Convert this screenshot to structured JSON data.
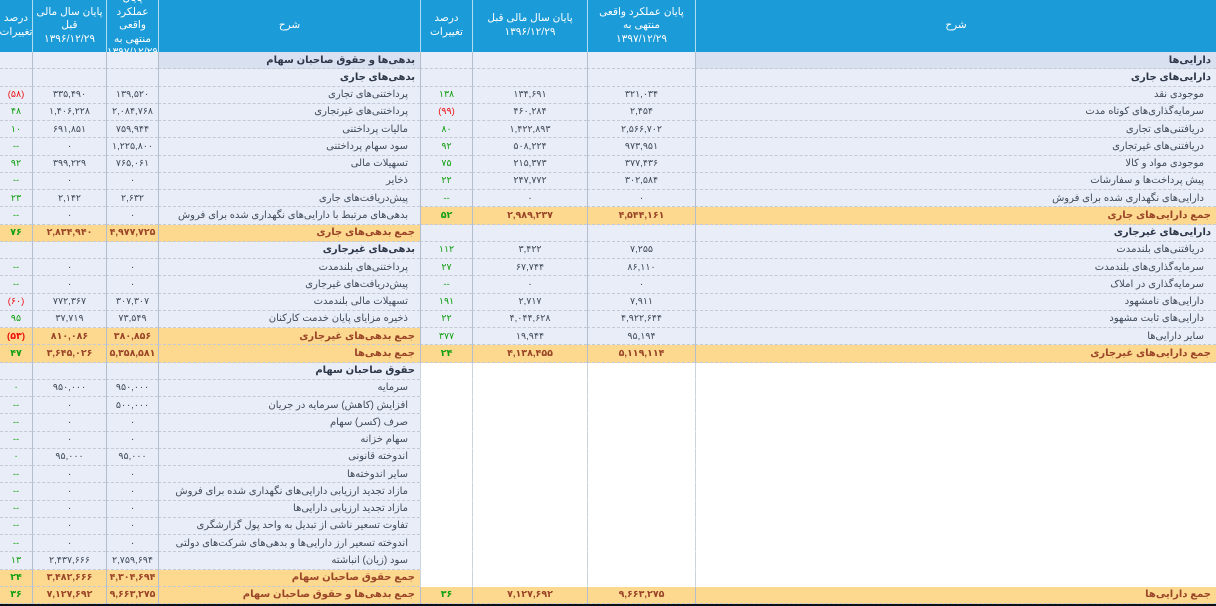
{
  "colors": {
    "header_bg": "#1b9bd7",
    "section_row_bg": "#d9e1f1",
    "body_row_bg": "#e8edf8",
    "total_row_bg": "#fcd98f",
    "total_text": "#9b4528",
    "positive_change": "#12a012",
    "negative_change": "#ee1111"
  },
  "headers": {
    "desc": "شرح",
    "current": "پایان عملکرد واقعی\nمنتهی به\n۱۳۹۷/۱۲/۲۹",
    "previous": "پایان سال مالی قبل\n۱۳۹۶/۱۲/۲۹",
    "change": "درصد\nتغییرات"
  },
  "assets": {
    "rows": [
      {
        "t": "section",
        "label": "دارایی‌ها"
      },
      {
        "t": "subhead",
        "label": "دارایی‌های جاری"
      },
      {
        "t": "item",
        "label": "موجودی نقد",
        "curr": "۳۲۱,۰۳۴",
        "prev": "۱۳۴,۶۹۱",
        "pct": "۱۳۸"
      },
      {
        "t": "item",
        "label": "سرمایه‌گذاری‌های کوتاه مدت",
        "curr": "۲,۴۵۴",
        "prev": "۴۶۰,۲۸۴",
        "pct": "(۹۹)"
      },
      {
        "t": "item",
        "label": "دریافتنی‌های تجاری",
        "curr": "۲,۵۶۶,۷۰۲",
        "prev": "۱,۴۲۲,۸۹۳",
        "pct": "۸۰"
      },
      {
        "t": "item",
        "label": "دریافتنی‌های غیرتجاری",
        "curr": "۹۷۳,۹۵۱",
        "prev": "۵۰۸,۲۲۴",
        "pct": "۹۲"
      },
      {
        "t": "item",
        "label": "موجودی مواد و کالا",
        "curr": "۳۷۷,۴۳۶",
        "prev": "۲۱۵,۳۷۳",
        "pct": "۷۵"
      },
      {
        "t": "item",
        "label": "پیش پرداخت‌ها و سفارشات",
        "curr": "۳۰۲,۵۸۴",
        "prev": "۲۴۷,۷۷۲",
        "pct": "۲۲"
      },
      {
        "t": "item",
        "label": "دارایی‌های نگهداری شده برای فروش",
        "curr": "۰",
        "prev": "۰",
        "pct": "--"
      },
      {
        "t": "total",
        "label": "جمع دارایی‌های جاری",
        "curr": "۴,۵۴۴,۱۶۱",
        "prev": "۲,۹۸۹,۲۳۷",
        "pct": "۵۲"
      },
      {
        "t": "subhead",
        "label": "دارایی‌های غیرجاری"
      },
      {
        "t": "item",
        "label": "دریافتنی‌های بلندمدت",
        "curr": "۷,۲۵۵",
        "prev": "۳,۴۲۲",
        "pct": "۱۱۲"
      },
      {
        "t": "item",
        "label": "سرمایه‌گذاری‌های بلندمدت",
        "curr": "۸۶,۱۱۰",
        "prev": "۶۷,۷۴۴",
        "pct": "۲۷"
      },
      {
        "t": "item",
        "label": "سرمایه‌گذاری در املاک",
        "curr": "۰",
        "prev": "۰",
        "pct": "--"
      },
      {
        "t": "item",
        "label": "دارایی‌های نامشهود",
        "curr": "۷,۹۱۱",
        "prev": "۲,۷۱۷",
        "pct": "۱۹۱"
      },
      {
        "t": "item",
        "label": "دارایی‌های ثابت مشهود",
        "curr": "۴,۹۲۲,۶۴۴",
        "prev": "۴,۰۴۴,۶۲۸",
        "pct": "۲۲"
      },
      {
        "t": "item",
        "label": "سایر دارایی‌ها",
        "curr": "۹۵,۱۹۴",
        "prev": "۱۹,۹۴۴",
        "pct": "۳۷۷"
      },
      {
        "t": "total",
        "label": "جمع دارایی‌های غیرجاری",
        "curr": "۵,۱۱۹,۱۱۴",
        "prev": "۴,۱۳۸,۴۵۵",
        "pct": "۲۴"
      },
      {
        "t": "empty"
      },
      {
        "t": "empty"
      },
      {
        "t": "empty"
      },
      {
        "t": "empty"
      },
      {
        "t": "empty"
      },
      {
        "t": "empty"
      },
      {
        "t": "empty"
      },
      {
        "t": "empty"
      },
      {
        "t": "empty"
      },
      {
        "t": "empty"
      },
      {
        "t": "empty"
      },
      {
        "t": "empty"
      },
      {
        "t": "empty"
      },
      {
        "t": "total",
        "label": "جمع دارایی‌ها",
        "curr": "۹,۶۶۳,۲۷۵",
        "prev": "۷,۱۲۷,۶۹۲",
        "pct": "۳۶"
      }
    ]
  },
  "liabilities_equity": {
    "rows": [
      {
        "t": "section",
        "label": "بدهی‌ها و حقوق صاحبان سهام"
      },
      {
        "t": "subhead",
        "label": "بدهی‌های جاری"
      },
      {
        "t": "item",
        "label": "پرداختنی‌های تجاری",
        "curr": "۱۳۹,۵۲۰",
        "prev": "۳۳۵,۴۹۰",
        "pct": "(۵۸)"
      },
      {
        "t": "item",
        "label": "پرداختنی‌های غیرتجاری",
        "curr": "۲,۰۸۴,۷۶۸",
        "prev": "۱,۴۰۶,۲۲۸",
        "pct": "۴۸"
      },
      {
        "t": "item",
        "label": "مالیات پرداختنی",
        "curr": "۷۵۹,۹۴۴",
        "prev": "۶۹۱,۸۵۱",
        "pct": "۱۰"
      },
      {
        "t": "item",
        "label": "سود سهام پرداختنی",
        "curr": "۱,۲۲۵,۸۰۰",
        "prev": "۰",
        "pct": "--"
      },
      {
        "t": "item",
        "label": "تسهیلات مالی",
        "curr": "۷۶۵,۰۶۱",
        "prev": "۳۹۹,۲۲۹",
        "pct": "۹۲"
      },
      {
        "t": "item",
        "label": "ذخایر",
        "curr": "۰",
        "prev": "۰",
        "pct": "--"
      },
      {
        "t": "item",
        "label": "پیش‌دریافت‌های جاری",
        "curr": "۲,۶۳۲",
        "prev": "۲,۱۴۲",
        "pct": "۲۳"
      },
      {
        "t": "item",
        "label": "بدهی‌های مرتبط با دارایی‌های نگهداری شده برای فروش",
        "curr": "۰",
        "prev": "۰",
        "pct": "--"
      },
      {
        "t": "total",
        "label": "جمع بدهی‌های جاری",
        "curr": "۴,۹۷۷,۷۲۵",
        "prev": "۲,۸۳۴,۹۴۰",
        "pct": "۷۶"
      },
      {
        "t": "subhead",
        "label": "بدهی‌های غیرجاری"
      },
      {
        "t": "item",
        "label": "پرداختنی‌های بلندمدت",
        "curr": "۰",
        "prev": "۰",
        "pct": "--"
      },
      {
        "t": "item",
        "label": "پیش‌دریافت‌های غیرجاری",
        "curr": "۰",
        "prev": "۰",
        "pct": "--"
      },
      {
        "t": "item",
        "label": "تسهیلات مالی بلندمدت",
        "curr": "۳۰۷,۳۰۷",
        "prev": "۷۷۲,۳۶۷",
        "pct": "(۶۰)"
      },
      {
        "t": "item",
        "label": "ذخیره مزایای پایان خدمت کارکنان",
        "curr": "۷۳,۵۴۹",
        "prev": "۳۷,۷۱۹",
        "pct": "۹۵"
      },
      {
        "t": "total",
        "label": "جمع بدهی‌های غیرجاری",
        "curr": "۳۸۰,۸۵۶",
        "prev": "۸۱۰,۰۸۶",
        "pct": "(۵۳)"
      },
      {
        "t": "total",
        "label": "جمع بدهی‌ها",
        "curr": "۵,۳۵۸,۵۸۱",
        "prev": "۳,۶۴۵,۰۲۶",
        "pct": "۴۷"
      },
      {
        "t": "subhead",
        "label": "حقوق صاحبان سهام"
      },
      {
        "t": "item",
        "label": "سرمایه",
        "curr": "۹۵۰,۰۰۰",
        "prev": "۹۵۰,۰۰۰",
        "pct": "۰"
      },
      {
        "t": "item",
        "label": "افزایش (کاهش) سرمایه در جریان",
        "curr": "۵۰۰,۰۰۰",
        "prev": "۰",
        "pct": "--"
      },
      {
        "t": "item",
        "label": "صرف (کسر) سهام",
        "curr": "۰",
        "prev": "۰",
        "pct": "--"
      },
      {
        "t": "item",
        "label": "سهام خزانه",
        "curr": "۰",
        "prev": "۰",
        "pct": "--"
      },
      {
        "t": "item",
        "label": "اندوخته قانونی",
        "curr": "۹۵,۰۰۰",
        "prev": "۹۵,۰۰۰",
        "pct": "۰"
      },
      {
        "t": "item",
        "label": "سایر اندوخته‌ها",
        "curr": "۰",
        "prev": "۰",
        "pct": "--"
      },
      {
        "t": "item",
        "label": "مازاد تجدید ارزیابی دارایی‌های نگهداری شده برای فروش",
        "curr": "۰",
        "prev": "۰",
        "pct": "--"
      },
      {
        "t": "item",
        "label": "مازاد تجدید ارزیابی دارایی‌ها",
        "curr": "۰",
        "prev": "۰",
        "pct": "--"
      },
      {
        "t": "item",
        "label": "تفاوت تسعیر ناشی از تبدیل به واحد پول گزارشگری",
        "curr": "۰",
        "prev": "۰",
        "pct": "--"
      },
      {
        "t": "item",
        "label": "اندوخته تسعیر ارز دارایی‌ها و بدهی‌های شرکت‌های دولتی",
        "curr": "۰",
        "prev": "۰",
        "pct": "--"
      },
      {
        "t": "item",
        "label": "سود (زیان) انباشته",
        "curr": "۲,۷۵۹,۶۹۴",
        "prev": "۲,۴۳۷,۶۶۶",
        "pct": "۱۳"
      },
      {
        "t": "total",
        "label": "جمع حقوق صاحبان سهام",
        "curr": "۴,۳۰۴,۶۹۴",
        "prev": "۳,۴۸۲,۶۶۶",
        "pct": "۲۴"
      },
      {
        "t": "total",
        "label": "جمع بدهی‌ها و حقوق صاحبان سهام",
        "curr": "۹,۶۶۳,۲۷۵",
        "prev": "۷,۱۲۷,۶۹۲",
        "pct": "۳۶"
      }
    ]
  }
}
